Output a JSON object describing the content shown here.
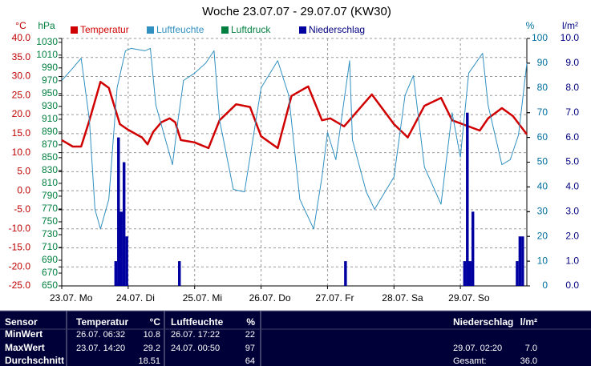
{
  "chart_data": {
    "type": "line",
    "title": "Woche 23.07.07 - 29.07.07 (KW30)",
    "ylabel": "°C",
    "y2label": "hPa",
    "y3label": "%",
    "y4label": "l/m²",
    "xlim": [
      0,
      168
    ],
    "xticks": [
      {
        "value": 0,
        "label": "23.07. Mo"
      },
      {
        "value": 24,
        "label": "24.07. Di"
      },
      {
        "value": 48,
        "label": "25.07. Mi"
      },
      {
        "value": 72,
        "label": "26.07. Do"
      },
      {
        "value": 96,
        "label": "27.07. Fr"
      },
      {
        "value": 120,
        "label": "28.07. Sa"
      },
      {
        "value": 144,
        "label": "29.07. So"
      }
    ],
    "ylim": [
      -25,
      40
    ],
    "yticks": [
      {
        "value": -25,
        "label": "-25.0"
      },
      {
        "value": -20,
        "label": "-20.0"
      },
      {
        "value": -15,
        "label": "-15.0"
      },
      {
        "value": -10,
        "label": "-10.0"
      },
      {
        "value": -5,
        "label": "-5.0"
      },
      {
        "value": 0,
        "label": "0.0"
      },
      {
        "value": 5,
        "label": "5.0"
      },
      {
        "value": 10,
        "label": "10.0"
      },
      {
        "value": 15,
        "label": "15.0"
      },
      {
        "value": 20,
        "label": "20.0"
      },
      {
        "value": 25,
        "label": "25.0"
      },
      {
        "value": 30,
        "label": "30.0"
      },
      {
        "value": 35,
        "label": "35.0"
      },
      {
        "value": 40,
        "label": "40.0"
      }
    ],
    "y2lim": [
      650,
      1036
    ],
    "y2ticks": [
      650,
      670,
      690,
      710,
      730,
      750,
      770,
      790,
      810,
      830,
      850,
      870,
      890,
      910,
      930,
      950,
      970,
      990,
      1010,
      1030
    ],
    "y3lim": [
      0,
      100
    ],
    "y3ticks": [
      0,
      10,
      20,
      30,
      40,
      50,
      60,
      70,
      80,
      90,
      100
    ],
    "y4lim": [
      0,
      10
    ],
    "y4ticks": [
      {
        "value": 0,
        "label": "0.0"
      },
      {
        "value": 1,
        "label": "1.0"
      },
      {
        "value": 2,
        "label": "2.0"
      },
      {
        "value": 3,
        "label": "3.0"
      },
      {
        "value": 4,
        "label": "4.0"
      },
      {
        "value": 5,
        "label": "5.0"
      },
      {
        "value": 6,
        "label": "6.0"
      },
      {
        "value": 7,
        "label": "7.0"
      },
      {
        "value": 8,
        "label": "8.0"
      },
      {
        "value": 9,
        "label": "9.0"
      },
      {
        "value": 10,
        "label": "10.0"
      }
    ],
    "grid": true,
    "series": [
      {
        "name": "Temperatur",
        "color": "#d00000",
        "axis": "y",
        "x": [
          0,
          4,
          7,
          10,
          14,
          17,
          21,
          24,
          29,
          31,
          33,
          36,
          39,
          41,
          43,
          48,
          53,
          57,
          63,
          68,
          72,
          78,
          83,
          89,
          94,
          97,
          102,
          112,
          120,
          125,
          131,
          137,
          141,
          151,
          154,
          159,
          163,
          168
        ],
        "values": [
          13.3,
          11.6,
          11.6,
          18.5,
          28.6,
          27,
          17.5,
          16,
          14,
          12.2,
          15.4,
          18,
          19,
          18,
          13.3,
          12.7,
          11.2,
          18.5,
          22.7,
          22,
          14.3,
          11.2,
          24.9,
          27.4,
          18.5,
          19,
          16.9,
          25.3,
          17.5,
          14,
          22.3,
          24.4,
          18.5,
          15.8,
          19,
          21.7,
          19.6,
          14.8
        ]
      },
      {
        "name": "Luftfeuchte",
        "color": "#3090c0",
        "axis": "y3",
        "x": [
          0,
          4,
          7,
          10,
          12,
          14,
          17,
          20,
          23,
          25,
          30,
          32,
          34,
          37,
          40,
          42,
          44,
          48,
          52,
          55,
          57,
          62,
          66,
          72,
          78,
          82,
          86,
          91,
          94,
          96,
          99,
          104,
          105,
          110,
          113,
          120,
          124,
          127,
          131,
          137,
          141,
          144,
          147,
          152,
          154,
          159,
          162,
          165,
          168
        ],
        "values": [
          83,
          88,
          92,
          67,
          31,
          23,
          35,
          80,
          95,
          96,
          95,
          96,
          73,
          61,
          49,
          67,
          83,
          86,
          90,
          95,
          67,
          39,
          38,
          80,
          91,
          77,
          35,
          23,
          44,
          62,
          51,
          91,
          59,
          38,
          31,
          44,
          77,
          85,
          48,
          33,
          70,
          52,
          86,
          94,
          73,
          49,
          51,
          61,
          90
        ]
      },
      {
        "name": "Luftdruck",
        "color": "#008040",
        "axis": "y2",
        "x": [],
        "values": []
      },
      {
        "name": "Niederschlag",
        "color": "#0000a0",
        "axis": "y4",
        "type": "bar",
        "x": [
          19,
          20,
          21,
          22,
          23,
          42,
          102,
          145,
          146,
          147,
          148,
          164,
          165,
          166
        ],
        "values": [
          1.0,
          6.0,
          3.0,
          5.0,
          2.0,
          1.0,
          1.0,
          1.0,
          7.0,
          1.0,
          3.0,
          1.0,
          2.0,
          2.0
        ]
      }
    ]
  },
  "table": {
    "sensor": "Sensor",
    "columns": {
      "temp": {
        "name": "Temperatur",
        "unit": "°C"
      },
      "hum": {
        "name": "Luftfeuchte",
        "unit": "%"
      },
      "rain": {
        "name": "Niederschlag",
        "unit": "l/m²"
      }
    },
    "rows": [
      {
        "label": "MinWert",
        "temp": {
          "time": "26.07. 06:32",
          "value": "10.8"
        },
        "hum": {
          "time": "26.07. 17:22",
          "value": "22"
        }
      },
      {
        "label": "MaxWert",
        "temp": {
          "time": "23.07. 14:20",
          "value": "29.2"
        },
        "hum": {
          "time": "24.07. 00:50",
          "value": "97"
        },
        "rain": {
          "time": "29.07. 02:20",
          "value": "7.0"
        }
      },
      {
        "label": "Durchschnitt",
        "temp": {
          "value": "18.51"
        },
        "hum": {
          "value": "64"
        },
        "rain": {
          "time": "Gesamt:",
          "value": "36.0"
        }
      }
    ]
  }
}
